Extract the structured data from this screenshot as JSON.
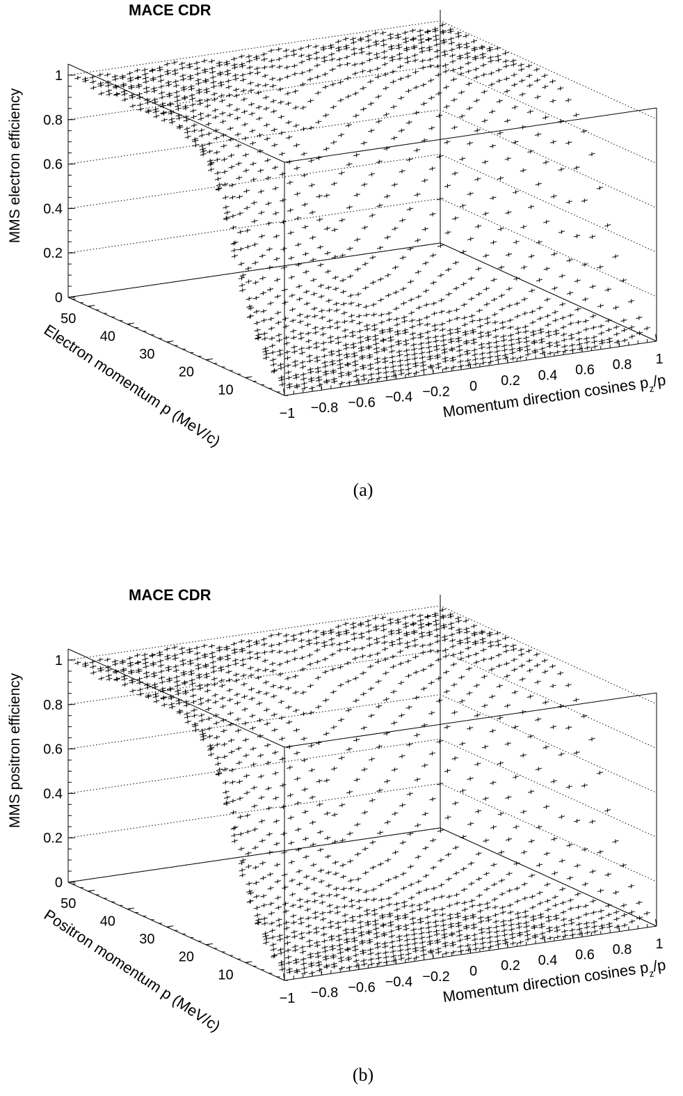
{
  "chart_data": [
    {
      "type": "scatter3d",
      "panel": "(a)",
      "title": "MACE CDR",
      "zlabel": "MMS electron efficiency",
      "ylabel": "Electron momentum p (MeV/c)",
      "xlabel_main": "Momentum direction cosines p",
      "xlabel_sub": "z",
      "xlabel_tail": "/p",
      "x_range": [
        -1,
        1
      ],
      "y_range": [
        0,
        55
      ],
      "z_range": [
        0,
        1.05
      ],
      "x_ticks": [
        "−1",
        "−0.8",
        "−0.6",
        "−0.4",
        "−0.2",
        "0",
        "0.2",
        "0.4",
        "0.6",
        "0.8",
        "1"
      ],
      "x_tick_values": [
        -1,
        -0.8,
        -0.6,
        -0.4,
        -0.2,
        0,
        0.2,
        0.4,
        0.6,
        0.8,
        1
      ],
      "y_ticks": [
        "10",
        "20",
        "30",
        "40",
        "50"
      ],
      "y_tick_values": [
        10,
        20,
        30,
        40,
        50
      ],
      "z_ticks": [
        "0",
        "0.2",
        "0.4",
        "0.6",
        "0.8",
        "1"
      ],
      "z_tick_values": [
        0,
        0.2,
        0.4,
        0.6,
        0.8,
        1
      ],
      "model": {
        "description": "efficiency(p, cos) sampled on a grid; plateau near 1 at high momentum, near 0 at low momentum",
        "cos_step": 0.04,
        "p_min": 1.5,
        "p_max": 53.5,
        "p_step": 2.0,
        "plateau_efficiency": 0.99,
        "threshold_momentum_at_cos0": 38,
        "threshold_momentum_at_edge": 8,
        "turn_on_width": 6
      }
    },
    {
      "type": "scatter3d",
      "panel": "(b)",
      "title": "MACE CDR",
      "zlabel": "MMS positron efficiency",
      "ylabel": "Positron momentum p (MeV/c)",
      "xlabel_main": "Momentum direction cosines p",
      "xlabel_sub": "z",
      "xlabel_tail": "/p",
      "x_range": [
        -1,
        1
      ],
      "y_range": [
        0,
        55
      ],
      "z_range": [
        0,
        1.05
      ],
      "x_ticks": [
        "−1",
        "−0.8",
        "−0.6",
        "−0.4",
        "−0.2",
        "0",
        "0.2",
        "0.4",
        "0.6",
        "0.8",
        "1"
      ],
      "x_tick_values": [
        -1,
        -0.8,
        -0.6,
        -0.4,
        -0.2,
        0,
        0.2,
        0.4,
        0.6,
        0.8,
        1
      ],
      "y_ticks": [
        "10",
        "20",
        "30",
        "40",
        "50"
      ],
      "y_tick_values": [
        10,
        20,
        30,
        40,
        50
      ],
      "z_ticks": [
        "0",
        "0.2",
        "0.4",
        "0.6",
        "0.8",
        "1"
      ],
      "z_tick_values": [
        0,
        0.2,
        0.4,
        0.6,
        0.8,
        1
      ],
      "model": {
        "description": "efficiency(p, cos) sampled on a grid; plateau near 1 at high momentum, near 0 at low momentum",
        "cos_step": 0.04,
        "p_min": 1.5,
        "p_max": 53.5,
        "p_step": 2.0,
        "plateau_efficiency": 0.99,
        "threshold_momentum_at_cos0": 38,
        "threshold_momentum_at_edge": 8,
        "turn_on_width": 6
      }
    }
  ],
  "captions": [
    "(a)",
    "(b)"
  ]
}
